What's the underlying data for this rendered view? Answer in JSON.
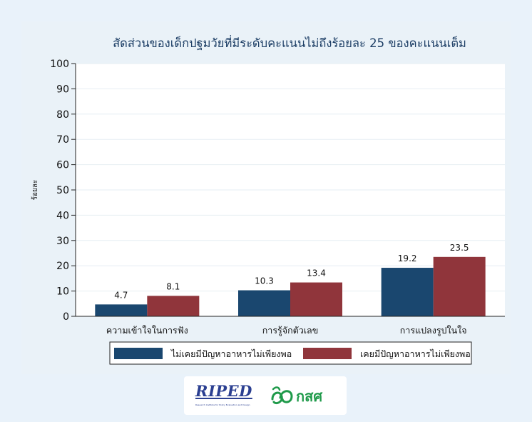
{
  "chart_data": {
    "type": "bar",
    "title": "สัดส่วนของเด็กปฐมวัยที่มีระดับคะแนนไม่ถึงร้อยละ 25 ของคะแนนเต็ม",
    "xlabel": "",
    "ylabel": "ร้อยละ",
    "ylim": [
      0,
      100
    ],
    "yticks": [
      0,
      10,
      20,
      30,
      40,
      50,
      60,
      70,
      80,
      90,
      100
    ],
    "grid": true,
    "legend_position": "bottom",
    "categories": [
      "ความเข้าใจในการฟัง",
      "การรู้จักตัวเลข",
      "การแปลงรูปในใจ"
    ],
    "series": [
      {
        "name": "ไม่เคยมีปัญหาอาหารไม่เพียงพอ",
        "color": "#1a476f",
        "values": [
          4.7,
          10.3,
          19.2
        ],
        "labels": [
          "4.7",
          "10.3",
          "19.2"
        ]
      },
      {
        "name": "เคยมีปัญหาอาหารไม่เพียงพอ",
        "color": "#90353b",
        "values": [
          8.1,
          13.4,
          23.5
        ],
        "labels": [
          "8.1",
          "13.4",
          "23.5"
        ]
      }
    ]
  },
  "logos": {
    "riped_text": "RIPED",
    "riped_subtitle": "Research Institute for Policy Evaluation and Design",
    "kss_text": "กสศ"
  }
}
